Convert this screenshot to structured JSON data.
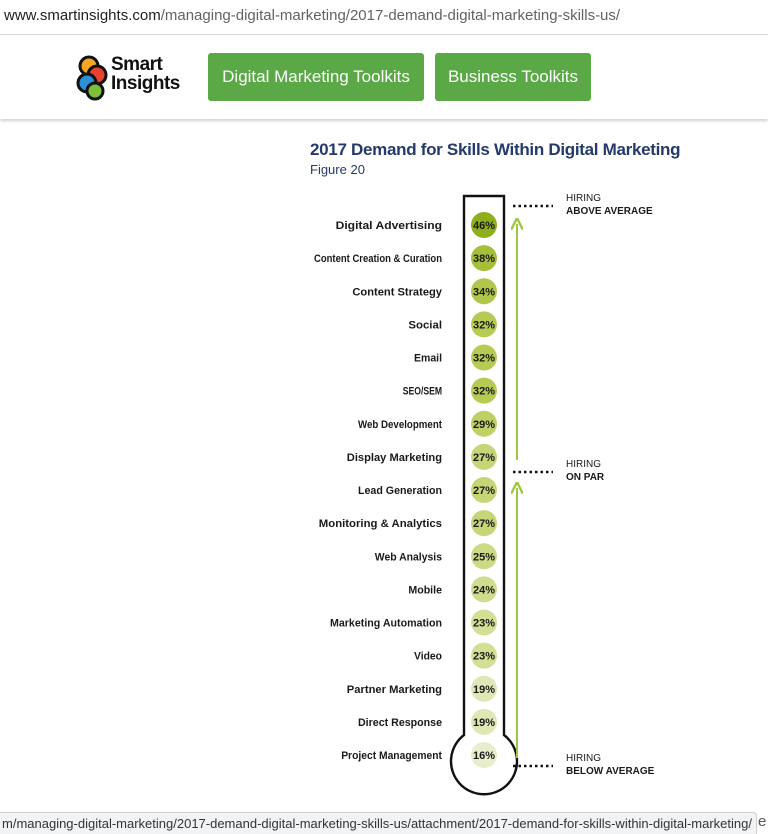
{
  "browser": {
    "url_domain": "www.smartinsights.com",
    "url_path": "/managing-digital-marketing/2017-demand-digital-marketing-skills-us/",
    "status_url": "m/managing-digital-marketing/2017-demand-digital-marketing-skills-us/attachment/2017-demand-for-skills-within-digital-marketing/",
    "edge_char": "e"
  },
  "site": {
    "logo_line1": "Smart",
    "logo_line2": "Insights",
    "nav_buttons": [
      "Digital Marketing Toolkits",
      "Business Toolkits"
    ],
    "accent_color": "#5aa846"
  },
  "chart_data": {
    "type": "bar",
    "title": "2017 Demand for Skills Within Digital Marketing",
    "subtitle": "Figure 20",
    "categories": [
      "Digital Advertising",
      "Content Creation & Curation",
      "Content Strategy",
      "Social",
      "Email",
      "SEO/SEM",
      "Web Development",
      "Display Marketing",
      "Lead Generation",
      "Monitoring & Analytics",
      "Web Analysis",
      "Mobile",
      "Marketing Automation",
      "Video",
      "Partner Marketing",
      "Direct Response",
      "Project Management"
    ],
    "values": [
      46,
      38,
      34,
      32,
      32,
      32,
      29,
      27,
      27,
      27,
      25,
      24,
      23,
      23,
      19,
      19,
      16
    ],
    "value_labels": [
      "46%",
      "38%",
      "34%",
      "32%",
      "32%",
      "32%",
      "29%",
      "27%",
      "27%",
      "27%",
      "25%",
      "24%",
      "23%",
      "23%",
      "19%",
      "19%",
      "16%"
    ],
    "annotations": [
      {
        "line1": "HIRING",
        "line2": "ABOVE AVERAGE"
      },
      {
        "line1": "HIRING",
        "line2": "ON PAR"
      },
      {
        "line1": "HIRING",
        "line2": "BELOW AVERAGE"
      }
    ],
    "colors": {
      "high": "#8fae1b",
      "mid": "#b9cd57",
      "low": "#e8eecb",
      "arrow": "#9ec83c"
    }
  }
}
